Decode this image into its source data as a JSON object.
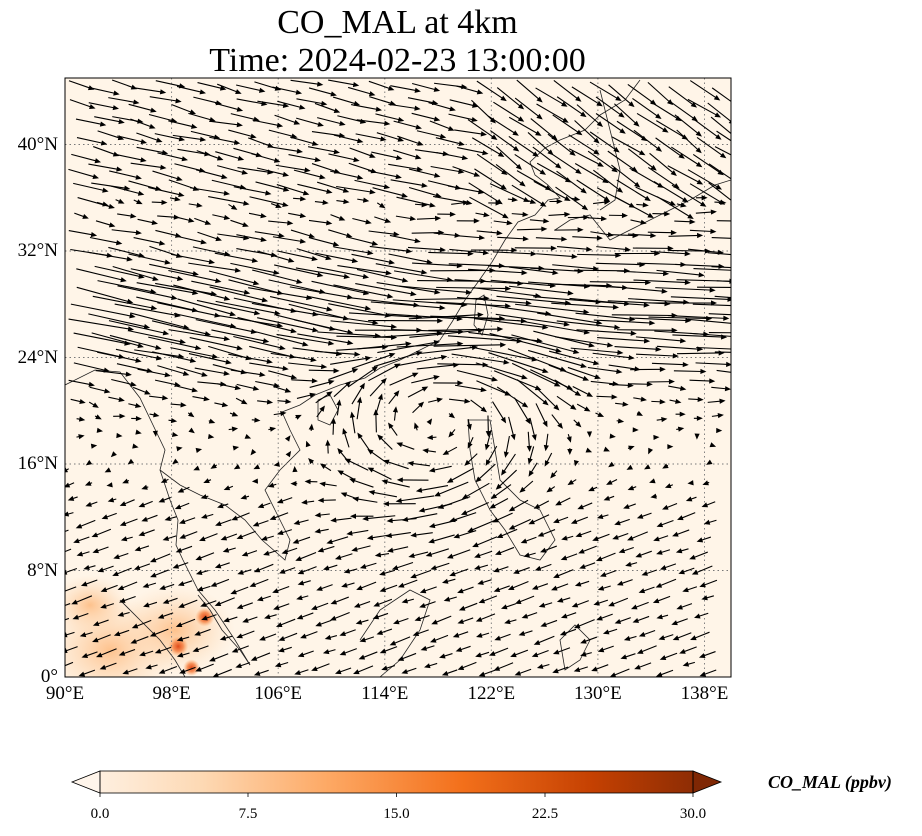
{
  "title_line1": "CO_MAL at 4km",
  "title_line2": "Time: 2024-02-23 13:00:00",
  "lat_ticks": [
    "0°",
    "8°N",
    "16°N",
    "24°N",
    "32°N",
    "40°N"
  ],
  "lon_ticks": [
    "90°E",
    "98°E",
    "106°E",
    "114°E",
    "122°E",
    "130°E",
    "138°E"
  ],
  "colorbar": {
    "label": "CO_MAL (ppbv)",
    "ticks": [
      "0.0",
      "7.5",
      "15.0",
      "22.5",
      "30.0"
    ],
    "min": 0.0,
    "max": 30.0,
    "colormap": "Oranges",
    "colors": [
      "#fff5eb",
      "#fdd9b4",
      "#fda762",
      "#f3701b",
      "#c54102",
      "#7f2704"
    ]
  },
  "map": {
    "lon_range": [
      90,
      140
    ],
    "lat_range": [
      0,
      45
    ],
    "gridlines": "dotted",
    "background_color": "#fff5e8",
    "wind_vectors": "quiver, black arrows",
    "co_hotspots": [
      {
        "lon": 100.5,
        "lat": 4.5,
        "value": 18
      },
      {
        "lon": 98.5,
        "lat": 2.3,
        "value": 20
      },
      {
        "lon": 99.5,
        "lat": 0.7,
        "value": 12
      }
    ]
  }
}
